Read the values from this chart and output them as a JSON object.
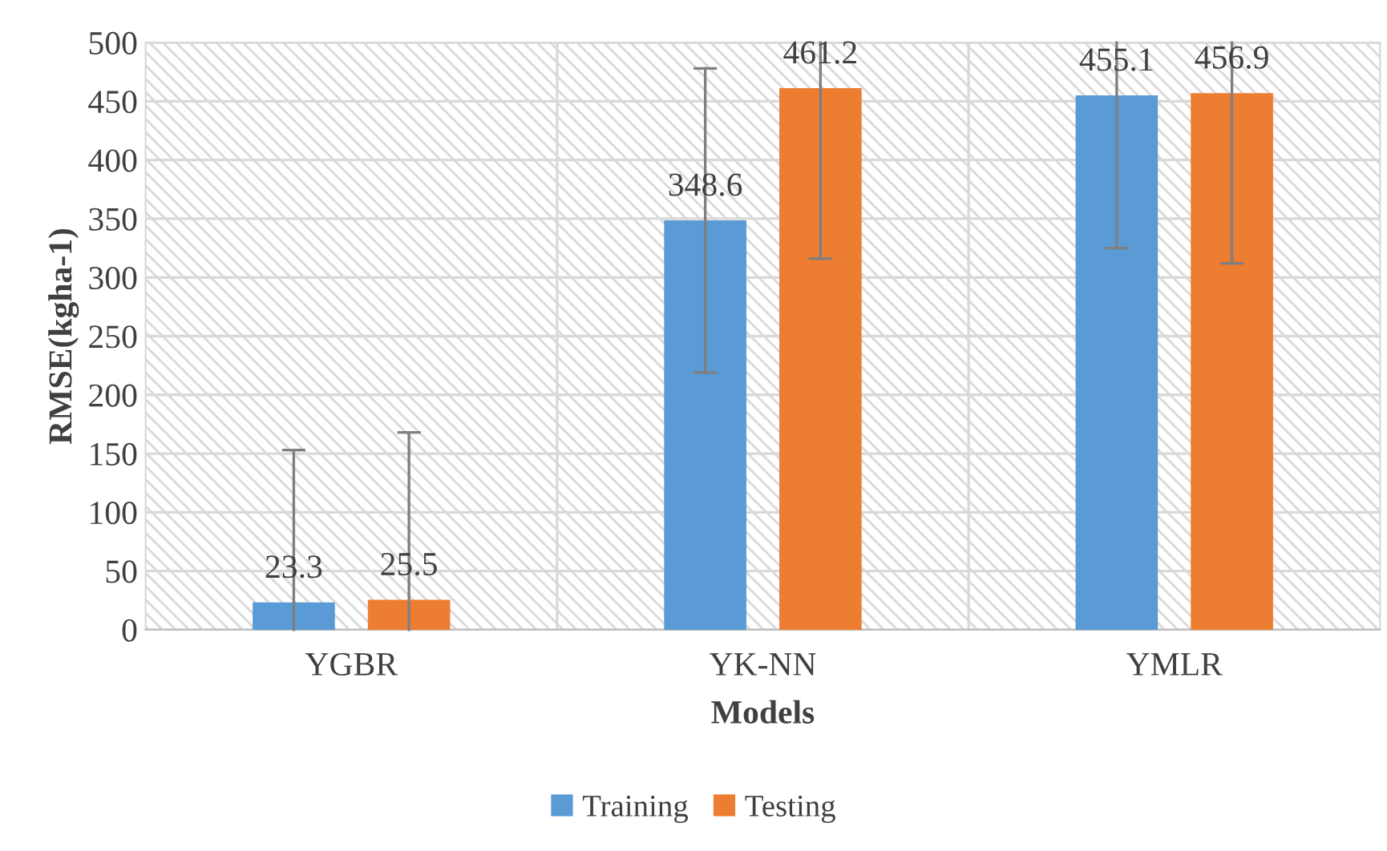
{
  "chart_data": {
    "type": "bar",
    "xlabel": "Models",
    "ylabel": "RMSE(kgha-1)",
    "categories": [
      "YGBR",
      "YK-NN",
      "YMLR"
    ],
    "series": [
      {
        "name": "Training",
        "color": "#5b9bd5",
        "values": [
          23.3,
          348.6,
          455.1
        ],
        "errors": [
          [
            0,
            153
          ],
          [
            219,
            478
          ],
          [
            325,
            500
          ]
        ]
      },
      {
        "name": "Testing",
        "color": "#ed7d31",
        "values": [
          25.5,
          461.2,
          456.9
        ],
        "errors": [
          [
            0,
            168
          ],
          [
            316,
            500
          ],
          [
            312,
            500
          ]
        ]
      }
    ],
    "ylim": [
      0,
      500
    ],
    "yticks": [
      0,
      50,
      100,
      150,
      200,
      250,
      300,
      350,
      400,
      450,
      500
    ],
    "grid": true,
    "legend": "bottom",
    "data_labels": true
  }
}
